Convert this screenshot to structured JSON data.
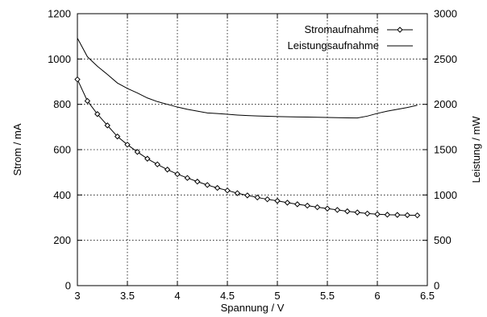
{
  "chart_data": {
    "type": "line",
    "xlabel": "Spannung / V",
    "ylabel": "Strom / mA",
    "y2label": "Leistung / mW",
    "xlim": [
      3,
      6.5
    ],
    "ylim": [
      0,
      1200
    ],
    "y2lim": [
      0,
      3000
    ],
    "xticks": [
      "3",
      "3.5",
      "4",
      "4.5",
      "5",
      "5.5",
      "6",
      "6.5"
    ],
    "yticks": [
      "0",
      "200",
      "400",
      "600",
      "800",
      "1000",
      "1200"
    ],
    "y2ticks": [
      "0",
      "500",
      "1000",
      "1500",
      "2000",
      "2500",
      "3000"
    ],
    "grid": true,
    "legend_position": "top-right",
    "series": [
      {
        "name": "Stromaufnahme",
        "axis": "left",
        "marker": "diamond",
        "x": [
          3.0,
          3.1,
          3.2,
          3.3,
          3.4,
          3.5,
          3.6,
          3.7,
          3.8,
          3.9,
          4.0,
          4.1,
          4.2,
          4.3,
          4.4,
          4.5,
          4.6,
          4.7,
          4.8,
          4.9,
          5.0,
          5.1,
          5.2,
          5.3,
          5.4,
          5.5,
          5.6,
          5.7,
          5.8,
          5.9,
          6.0,
          6.1,
          6.2,
          6.3,
          6.4
        ],
        "y": [
          910,
          815,
          757,
          707,
          658,
          622,
          590,
          560,
          535,
          512,
          492,
          475,
          459,
          444,
          431,
          420,
          408,
          398,
          389,
          381,
          374,
          366,
          359,
          353,
          346,
          340,
          334,
          328,
          323,
          318,
          315,
          313,
          312,
          311,
          310
        ]
      },
      {
        "name": "Leistungsaufnahme",
        "axis": "right",
        "marker": "none",
        "x": [
          3.0,
          3.1,
          3.2,
          3.3,
          3.4,
          3.5,
          3.6,
          3.7,
          3.8,
          3.9,
          4.0,
          4.1,
          4.2,
          4.3,
          4.4,
          4.5,
          4.6,
          4.7,
          4.8,
          4.9,
          5.0,
          5.1,
          5.2,
          5.3,
          5.4,
          5.5,
          5.6,
          5.7,
          5.8,
          5.9,
          6.0,
          6.1,
          6.2,
          6.3,
          6.4
        ],
        "y": [
          2730,
          2525,
          2420,
          2330,
          2235,
          2175,
          2125,
          2070,
          2030,
          2000,
          1970,
          1945,
          1925,
          1905,
          1898,
          1890,
          1882,
          1876,
          1872,
          1868,
          1865,
          1863,
          1861,
          1859,
          1857,
          1855,
          1853,
          1851,
          1850,
          1870,
          1900,
          1925,
          1945,
          1965,
          1990
        ]
      }
    ]
  }
}
